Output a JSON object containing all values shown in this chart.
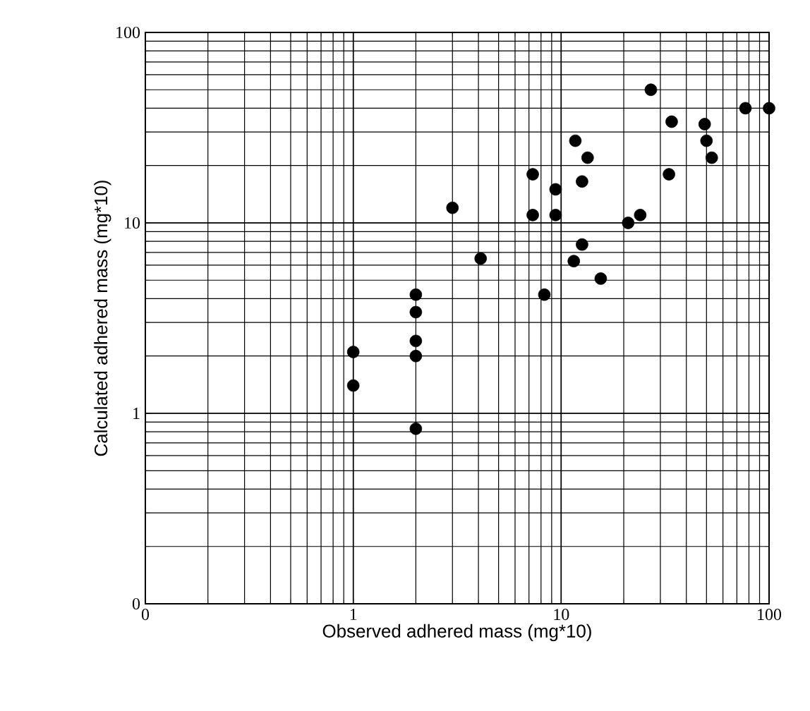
{
  "chart_data": {
    "type": "scatter",
    "xlabel": "Observed adhered mass (mg*10)",
    "ylabel": "Calculated adhered mass (mg*10)",
    "log": "xy",
    "grid": true,
    "marker": "circle",
    "xlim": [
      0.1,
      100
    ],
    "ylim": [
      0.1,
      100
    ],
    "xticks": [
      {
        "value": 0.1,
        "label": "0"
      },
      1,
      10,
      100
    ],
    "yticks": [
      {
        "value": 0.1,
        "label": "0"
      },
      1,
      10,
      100
    ],
    "series": [
      {
        "color": "#000000",
        "x": [
          1,
          1,
          2,
          2,
          2,
          2,
          2,
          3,
          4.1,
          7.3,
          7.3,
          8.3,
          9.4,
          9.4,
          11.5,
          11.7,
          12.6,
          12.6,
          13.4,
          15.5,
          21,
          24,
          27,
          33,
          34,
          49,
          50,
          53,
          77,
          100
        ],
        "values": [
          2.1,
          1.4,
          4.2,
          3.4,
          2.4,
          2.0,
          0.83,
          12,
          6.5,
          18,
          11,
          4.2,
          15,
          11,
          6.3,
          27,
          7.7,
          16.5,
          22,
          5.1,
          10,
          11,
          50,
          18,
          34,
          33,
          27,
          22,
          40,
          40
        ]
      }
    ]
  }
}
